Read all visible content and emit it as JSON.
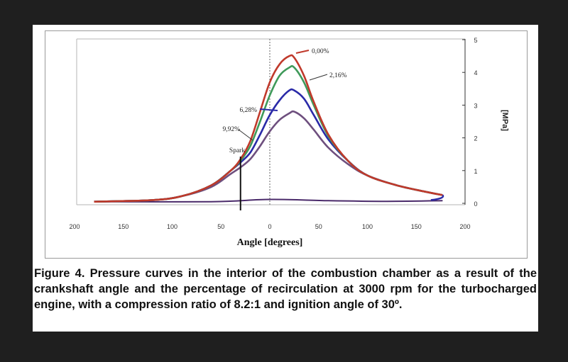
{
  "chart_data": {
    "type": "line",
    "title": "",
    "xlabel": "Angle [degrees]",
    "ylabel": "[MPa]",
    "xlim": [
      -200,
      200
    ],
    "ylim": [
      0,
      5
    ],
    "x_ticks": [
      "200",
      "150",
      "100",
      "50",
      "0",
      "50",
      "100",
      "150",
      "200"
    ],
    "x_tick_values": [
      -200,
      -150,
      -100,
      -50,
      0,
      50,
      100,
      150,
      200
    ],
    "y_ticks": [
      "0",
      "1",
      "2",
      "3",
      "4",
      "5"
    ],
    "y_tick_values": [
      0,
      1,
      2,
      3,
      4,
      5
    ],
    "legend": "labels on curves",
    "grid": false,
    "annotations": [
      {
        "text": "0,00%",
        "series": 0
      },
      {
        "text": "2,16%",
        "series": 1
      },
      {
        "text": "6,28%",
        "series": 2
      },
      {
        "text": "9,92%",
        "series": 3
      },
      {
        "text": "Spark",
        "x": -30
      }
    ],
    "spark_angle": -30,
    "series": [
      {
        "name": "0,00%",
        "color": "#c0392b",
        "points": [
          [
            -180,
            0.05
          ],
          [
            -120,
            0.1
          ],
          [
            -90,
            0.22
          ],
          [
            -60,
            0.55
          ],
          [
            -40,
            1.0
          ],
          [
            -30,
            1.35
          ],
          [
            -20,
            1.9
          ],
          [
            -10,
            2.8
          ],
          [
            0,
            3.7
          ],
          [
            10,
            4.25
          ],
          [
            20,
            4.5
          ],
          [
            25,
            4.45
          ],
          [
            35,
            3.9
          ],
          [
            45,
            3.1
          ],
          [
            60,
            2.1
          ],
          [
            80,
            1.3
          ],
          [
            100,
            0.85
          ],
          [
            130,
            0.55
          ],
          [
            160,
            0.35
          ],
          [
            177,
            0.25
          ]
        ]
      },
      {
        "name": "2,16%",
        "color": "#3f9a5a",
        "points": [
          [
            -180,
            0.05
          ],
          [
            -120,
            0.1
          ],
          [
            -90,
            0.22
          ],
          [
            -60,
            0.55
          ],
          [
            -40,
            1.0
          ],
          [
            -30,
            1.3
          ],
          [
            -20,
            1.75
          ],
          [
            -10,
            2.5
          ],
          [
            0,
            3.3
          ],
          [
            10,
            3.9
          ],
          [
            20,
            4.15
          ],
          [
            25,
            4.15
          ],
          [
            35,
            3.7
          ],
          [
            45,
            3.0
          ],
          [
            60,
            2.05
          ],
          [
            80,
            1.3
          ],
          [
            100,
            0.85
          ],
          [
            130,
            0.55
          ],
          [
            160,
            0.35
          ],
          [
            177,
            0.25
          ]
        ]
      },
      {
        "name": "6,28%",
        "color": "#2a2aa8",
        "points": [
          [
            -180,
            0.05
          ],
          [
            -120,
            0.1
          ],
          [
            -90,
            0.22
          ],
          [
            -60,
            0.55
          ],
          [
            -40,
            1.0
          ],
          [
            -30,
            1.25
          ],
          [
            -20,
            1.55
          ],
          [
            -10,
            2.1
          ],
          [
            0,
            2.7
          ],
          [
            10,
            3.15
          ],
          [
            20,
            3.45
          ],
          [
            25,
            3.45
          ],
          [
            35,
            3.2
          ],
          [
            45,
            2.7
          ],
          [
            60,
            1.95
          ],
          [
            80,
            1.3
          ],
          [
            100,
            0.85
          ],
          [
            130,
            0.55
          ],
          [
            160,
            0.35
          ],
          [
            177,
            0.25
          ]
        ]
      },
      {
        "name": "9,92%",
        "color": "#6e4f7e",
        "points": [
          [
            -180,
            0.05
          ],
          [
            -120,
            0.1
          ],
          [
            -90,
            0.22
          ],
          [
            -60,
            0.5
          ],
          [
            -40,
            0.9
          ],
          [
            -30,
            1.1
          ],
          [
            -20,
            1.35
          ],
          [
            -10,
            1.75
          ],
          [
            0,
            2.2
          ],
          [
            10,
            2.55
          ],
          [
            20,
            2.75
          ],
          [
            25,
            2.8
          ],
          [
            35,
            2.6
          ],
          [
            45,
            2.25
          ],
          [
            60,
            1.7
          ],
          [
            80,
            1.2
          ],
          [
            100,
            0.85
          ],
          [
            130,
            0.55
          ],
          [
            160,
            0.35
          ],
          [
            177,
            0.25
          ]
        ]
      }
    ],
    "baseline": {
      "color": "#4a2a6a",
      "points": [
        [
          -180,
          0.05
        ],
        [
          -60,
          0.05
        ],
        [
          0,
          0.12
        ],
        [
          60,
          0.08
        ],
        [
          120,
          0.06
        ],
        [
          177,
          0.08
        ]
      ]
    }
  },
  "caption": "Figure 4. Pressure curves in the interior of the combustion chamber as a result of the crankshaft angle and the percentage of recirculation at 3000 rpm for the turbocharged engine, with a compression ratio of 8.2:1 and ignition angle of 30º."
}
